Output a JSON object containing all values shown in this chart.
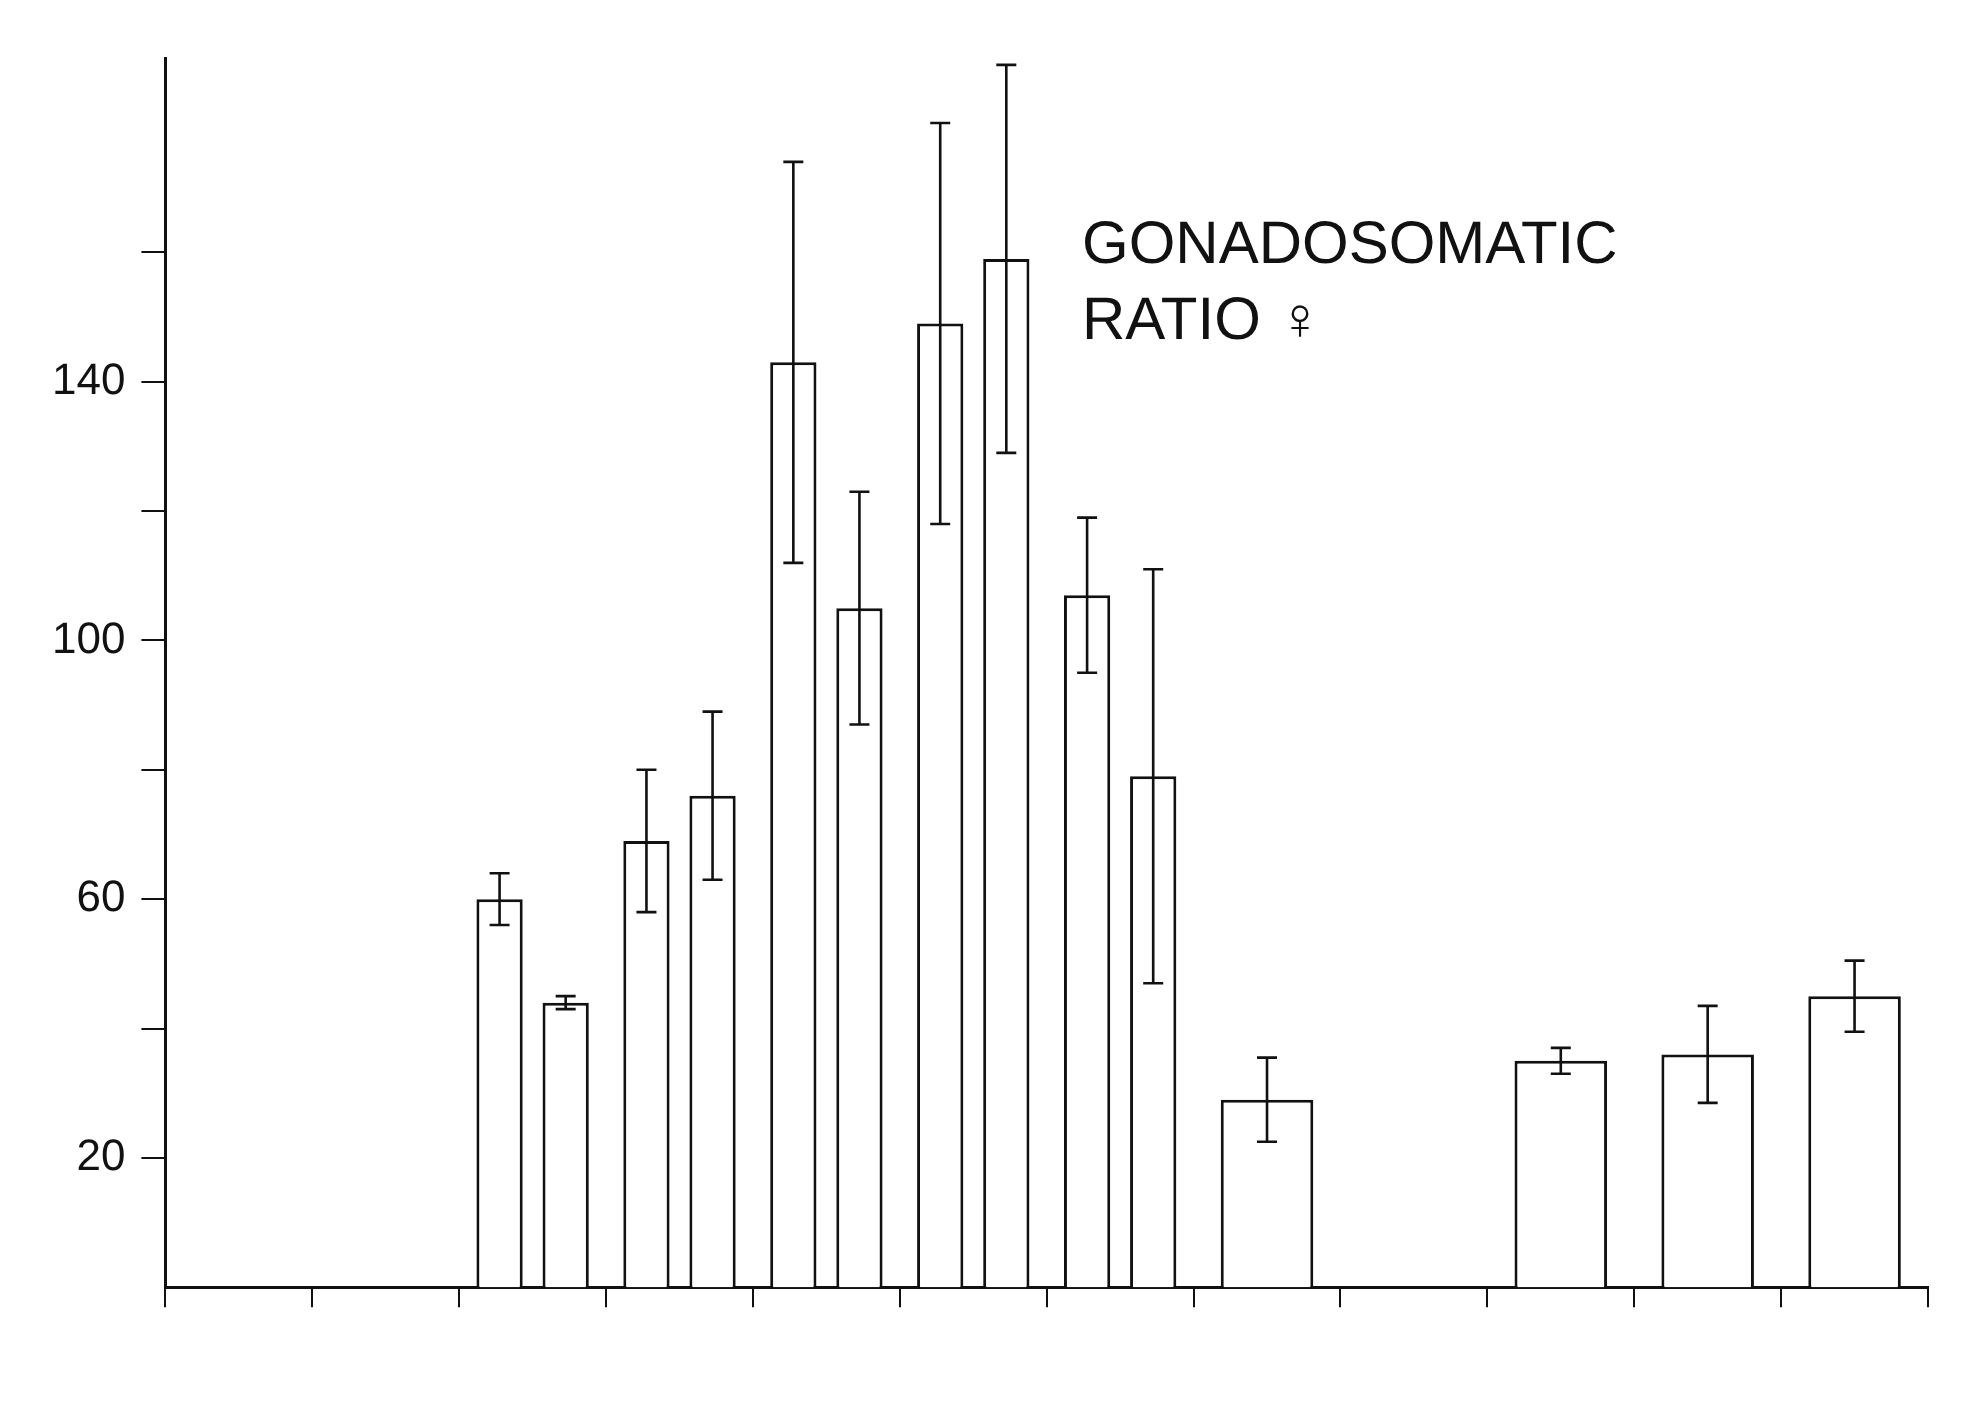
{
  "chart_data": {
    "type": "bar",
    "title": "GONADOSOMATIC RATIO ♀",
    "categories": [
      null,
      null,
      null,
      null,
      null,
      null,
      null,
      null,
      null,
      null,
      null,
      null
    ],
    "ylim": [
      0,
      190
    ],
    "yticks": [
      20,
      {
        "value": 40,
        "label": null
      },
      60,
      {
        "value": 80,
        "label": null
      },
      100,
      {
        "value": 120,
        "label": null
      },
      140,
      {
        "value": 160,
        "label": null
      }
    ],
    "grid": false,
    "legend": false,
    "series": [
      {
        "color": "#ffffff",
        "values": [
          null,
          null,
          60,
          69,
          143,
          149,
          107,
          29,
          null,
          35,
          36,
          45
        ],
        "errors": [
          null,
          null,
          4,
          11,
          31,
          31,
          12,
          6.5,
          null,
          2,
          7.5,
          5.5
        ]
      },
      {
        "color": "#ffffff",
        "values": [
          null,
          null,
          44,
          76,
          105,
          159,
          79,
          null,
          null,
          null,
          null,
          null
        ],
        "errors": [
          null,
          null,
          1,
          13,
          18,
          30,
          32,
          null,
          null,
          null,
          null,
          null
        ]
      }
    ]
  }
}
